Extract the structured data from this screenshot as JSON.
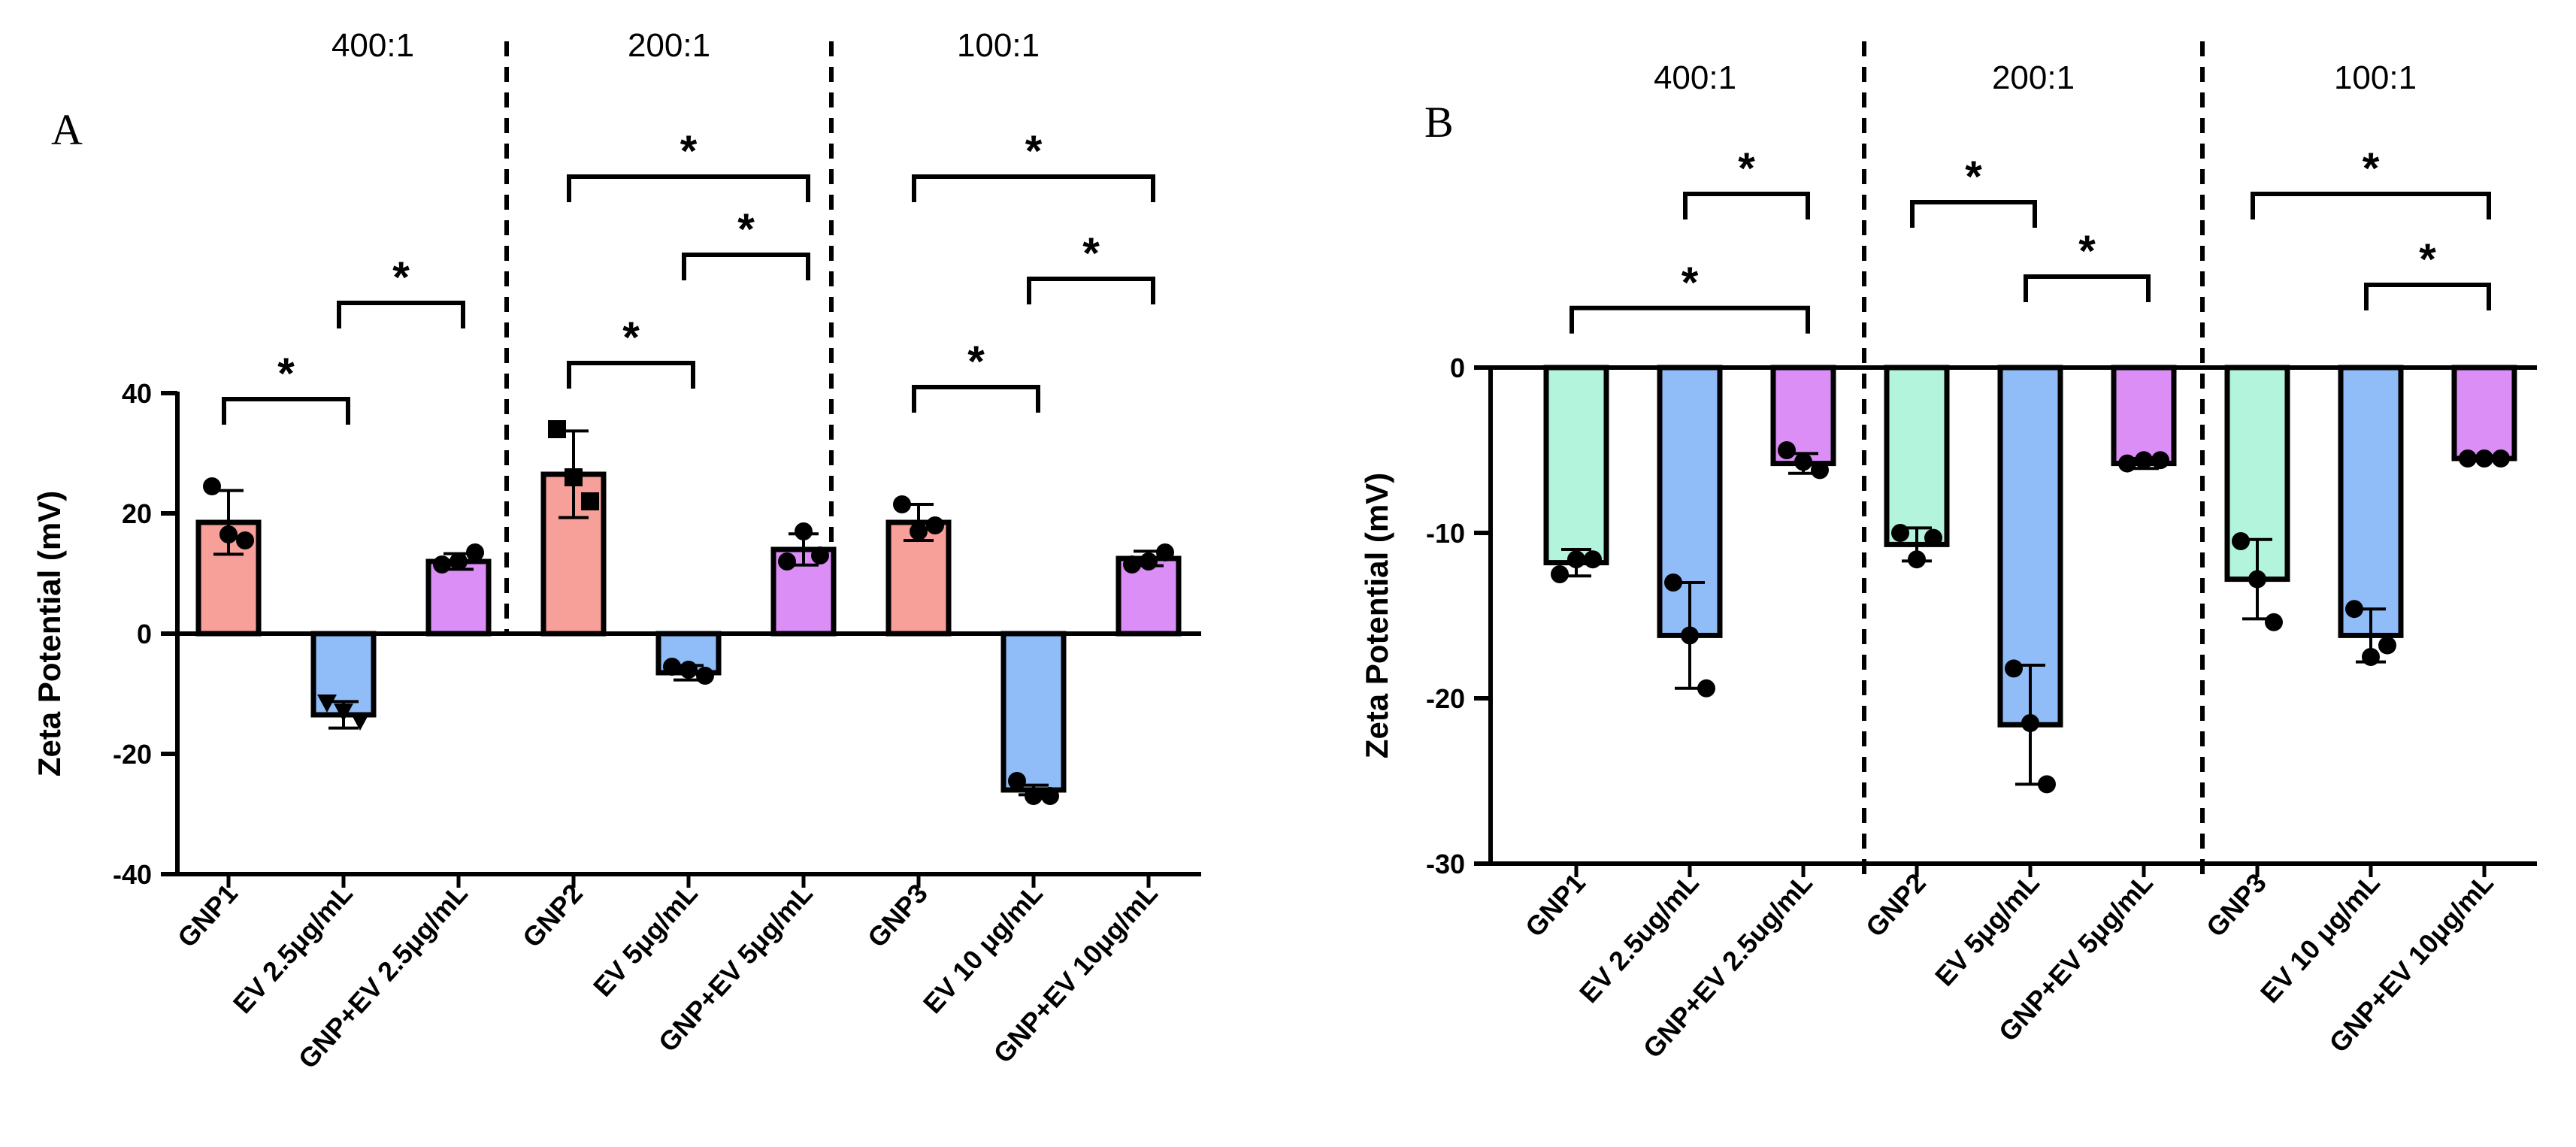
{
  "colors": {
    "GNP": "#f7a09a",
    "EV": "#90bdf7",
    "GNP+EV": "#dc8ef7",
    "GNP_B": "#b3f5dc",
    "stroke": "#000000"
  },
  "chart_data": [
    {
      "type": "bar",
      "panel": "A",
      "ylabel": "Zeta Potential (mV)",
      "ylim": [
        -40,
        40
      ],
      "yticks": [
        -40,
        -20,
        0,
        20,
        40
      ],
      "groups": [
        "400:1",
        "200:1",
        "100:1"
      ],
      "categories": [
        "GNP1",
        "EV 2.5μg/mL",
        "GNP+EV 2.5μg/mL",
        "GNP2",
        "EV 5μg/mL",
        "GNP+EV 5μg/mL",
        "GNP3",
        "EV 10 μg/mL",
        "GNP+EV 10μg/mL"
      ],
      "category_types": [
        "GNP",
        "EV",
        "GNP+EV",
        "GNP",
        "EV",
        "GNP+EV",
        "GNP",
        "EV",
        "GNP+EV"
      ],
      "values": [
        18.5,
        -13.5,
        12,
        26.5,
        -6.5,
        14,
        18.5,
        -26,
        12.5
      ],
      "error": [
        5.3,
        2.2,
        1.3,
        7.2,
        1.2,
        2.6,
        3,
        0.8,
        1.2
      ],
      "points": [
        [
          24.5,
          16.5,
          15.5
        ],
        [
          -11.5,
          -13,
          -14.5
        ],
        [
          11.5,
          12,
          13.5
        ],
        [
          34,
          26,
          22
        ],
        [
          -5.5,
          -6,
          -7
        ],
        [
          12,
          17,
          13
        ],
        [
          21.5,
          17,
          18
        ],
        [
          -24.5,
          -27,
          -27
        ],
        [
          11.5,
          12,
          13.5
        ]
      ],
      "marker_shapes": [
        "circle",
        "triangle",
        "circle",
        "square",
        "circle",
        "circle",
        "circle",
        "circle",
        "circle"
      ],
      "significance": [
        {
          "from": 0,
          "to": 1,
          "level": 39,
          "label": "*"
        },
        {
          "from": 1,
          "to": 2,
          "level": 55,
          "label": "*"
        },
        {
          "from": 3,
          "to": 4,
          "level": 45,
          "label": "*"
        },
        {
          "from": 4,
          "to": 5,
          "level": 63,
          "label": "*"
        },
        {
          "from": 3,
          "to": 5,
          "level": 76,
          "label": "*"
        },
        {
          "from": 6,
          "to": 7,
          "level": 41,
          "label": "*"
        },
        {
          "from": 7,
          "to": 8,
          "level": 59,
          "label": "*"
        },
        {
          "from": 6,
          "to": 8,
          "level": 76,
          "label": "*"
        }
      ]
    },
    {
      "type": "bar",
      "panel": "B",
      "ylabel": "Zeta Potential (mV)",
      "ylim": [
        -30,
        0
      ],
      "yticks": [
        -30,
        -20,
        -10,
        0
      ],
      "groups": [
        "400:1",
        "200:1",
        "100:1"
      ],
      "categories": [
        "GNP1",
        "EV 2.5ug/mL",
        "GNP+EV 2.5ug/mL",
        "GNP2",
        "EV 5μg/mL",
        "GNP+EV 5μg/mL",
        "GNP3",
        "EV 10 μg/mL",
        "GNP+EV 10μg/mL"
      ],
      "category_types": [
        "GNP",
        "EV",
        "GNP+EV",
        "GNP",
        "EV",
        "GNP+EV",
        "GNP",
        "EV",
        "GNP+EV"
      ],
      "values": [
        -11.8,
        -16.2,
        -5.8,
        -10.7,
        -21.6,
        -5.8,
        -12.8,
        -16.2,
        -5.5
      ],
      "error": [
        0.8,
        3.2,
        0.6,
        1,
        3.6,
        0.3,
        2.4,
        1.6,
        0.1
      ],
      "points": [
        [
          -12.5,
          -11.6,
          -11.6
        ],
        [
          -13,
          -16.2,
          -19.4
        ],
        [
          -5,
          -5.7,
          -6.2
        ],
        [
          -10,
          -11.6,
          -10.3
        ],
        [
          -18.2,
          -21.5,
          -25.2
        ],
        [
          -5.8,
          -5.6,
          -5.6
        ],
        [
          -10.5,
          -12.8,
          -15.4
        ],
        [
          -14.6,
          -17.5,
          -16.8
        ],
        [
          -5.5,
          -5.5,
          -5.5
        ]
      ],
      "marker_shapes": [
        "circle",
        "circle",
        "circle",
        "circle",
        "circle",
        "circle",
        "circle",
        "circle",
        "circle"
      ],
      "significance": [
        {
          "from": 0,
          "to": 2,
          "level": 3.6,
          "label": "*"
        },
        {
          "from": 1,
          "to": 2,
          "level": 10.5,
          "label": "*"
        },
        {
          "from": 3,
          "to": 4,
          "level": 10,
          "label": "*"
        },
        {
          "from": 4,
          "to": 5,
          "level": 5.5,
          "label": "*"
        },
        {
          "from": 6,
          "to": 8,
          "level": 10.5,
          "label": "*"
        },
        {
          "from": 7,
          "to": 8,
          "level": 5,
          "label": "*"
        }
      ]
    }
  ]
}
